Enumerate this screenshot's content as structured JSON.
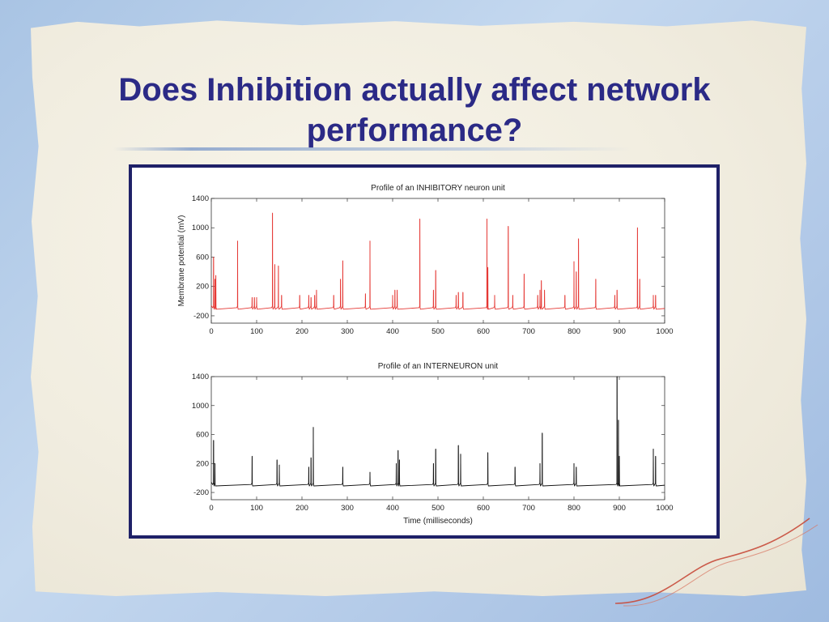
{
  "slide": {
    "title_line1": "Does Inhibition actually affect network",
    "title_line2": "performance?"
  },
  "colors": {
    "title": "#2b2a86",
    "frame": "#1f2168",
    "inhibitory_trace": "#e53935",
    "interneuron_trace": "#111111"
  },
  "chart_data": [
    {
      "type": "line",
      "title": "Profile of an INHIBITORY neuron unit",
      "xlabel": "",
      "ylabel": "Membrane potential (mV)",
      "xlim": [
        0,
        1000
      ],
      "ylim": [
        -300,
        1400
      ],
      "xticks": [
        0,
        100,
        200,
        300,
        400,
        500,
        600,
        700,
        800,
        900,
        1000
      ],
      "yticks": [
        -200,
        200,
        600,
        1000,
        1400
      ],
      "baseline": -100,
      "series": [
        {
          "color": "#e53935",
          "spikes": [
            [
              5,
              600
            ],
            [
              8,
              300
            ],
            [
              10,
              350
            ],
            [
              58,
              820
            ],
            [
              90,
              50
            ],
            [
              95,
              50
            ],
            [
              100,
              50
            ],
            [
              135,
              1200
            ],
            [
              140,
              500
            ],
            [
              148,
              480
            ],
            [
              155,
              80
            ],
            [
              195,
              80
            ],
            [
              215,
              80
            ],
            [
              220,
              50
            ],
            [
              228,
              80
            ],
            [
              232,
              150
            ],
            [
              270,
              80
            ],
            [
              285,
              300
            ],
            [
              290,
              550
            ],
            [
              340,
              100
            ],
            [
              350,
              820
            ],
            [
              400,
              80
            ],
            [
              405,
              150
            ],
            [
              410,
              150
            ],
            [
              460,
              1120
            ],
            [
              490,
              150
            ],
            [
              495,
              420
            ],
            [
              540,
              80
            ],
            [
              545,
              120
            ],
            [
              555,
              120
            ],
            [
              608,
              1120
            ],
            [
              610,
              460
            ],
            [
              625,
              80
            ],
            [
              655,
              1020
            ],
            [
              665,
              80
            ],
            [
              690,
              370
            ],
            [
              720,
              80
            ],
            [
              725,
              150
            ],
            [
              728,
              280
            ],
            [
              735,
              150
            ],
            [
              780,
              80
            ],
            [
              800,
              540
            ],
            [
              805,
              400
            ],
            [
              810,
              850
            ],
            [
              848,
              300
            ],
            [
              890,
              80
            ],
            [
              895,
              150
            ],
            [
              940,
              1000
            ],
            [
              945,
              300
            ],
            [
              975,
              80
            ],
            [
              980,
              80
            ]
          ]
        }
      ]
    },
    {
      "type": "line",
      "title": "Profile of an INTERNEURON unit",
      "xlabel": "Time (milliseconds)",
      "ylabel": "",
      "xlim": [
        0,
        1000
      ],
      "ylim": [
        -300,
        1400
      ],
      "xticks": [
        0,
        100,
        200,
        300,
        400,
        500,
        600,
        700,
        800,
        900,
        1000
      ],
      "yticks": [
        -200,
        200,
        600,
        1000,
        1400
      ],
      "baseline": -100,
      "series": [
        {
          "color": "#111111",
          "spikes": [
            [
              5,
              520
            ],
            [
              8,
              200
            ],
            [
              90,
              300
            ],
            [
              145,
              250
            ],
            [
              150,
              180
            ],
            [
              215,
              150
            ],
            [
              220,
              280
            ],
            [
              225,
              700
            ],
            [
              290,
              150
            ],
            [
              350,
              80
            ],
            [
              408,
              200
            ],
            [
              412,
              380
            ],
            [
              415,
              250
            ],
            [
              490,
              200
            ],
            [
              495,
              400
            ],
            [
              545,
              450
            ],
            [
              550,
              330
            ],
            [
              610,
              350
            ],
            [
              670,
              150
            ],
            [
              725,
              200
            ],
            [
              730,
              620
            ],
            [
              800,
              200
            ],
            [
              805,
              150
            ],
            [
              895,
              1400
            ],
            [
              898,
              800
            ],
            [
              900,
              300
            ],
            [
              975,
              400
            ],
            [
              980,
              300
            ]
          ]
        }
      ]
    }
  ]
}
